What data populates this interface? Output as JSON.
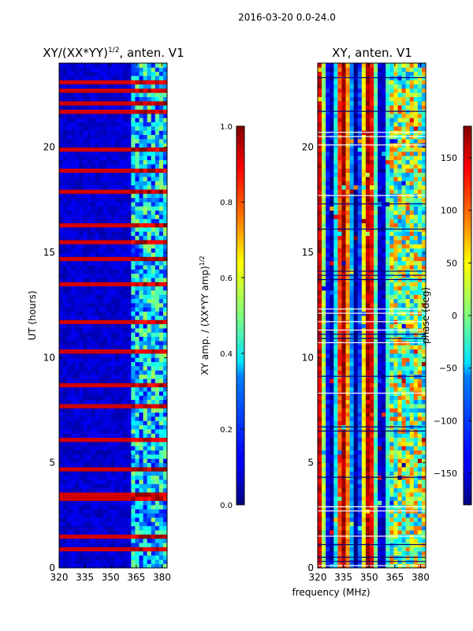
{
  "figure": {
    "suptitle": "2016-03-20 0.0-24.0",
    "xlabel": "frequency (MHz)"
  },
  "chart_data": [
    {
      "type": "heatmap",
      "title": "XY/(XX*YY)",
      "title_superscript": "1/2",
      "title_suffix": ", anten. V1",
      "xlabel": "",
      "ylabel": "UT (hours)",
      "xlim": [
        320,
        383
      ],
      "ylim": [
        0,
        24
      ],
      "xticks": [
        320,
        335,
        350,
        365,
        380
      ],
      "yticks": [
        0,
        5,
        10,
        15,
        20
      ],
      "colorbar": {
        "label": "XY amp. / (XX*YY amp)",
        "label_superscript": "1/2",
        "range": [
          0.0,
          1.0
        ],
        "ticks": [
          "0.0",
          "0.2",
          "0.4",
          "0.6",
          "0.8",
          "1.0"
        ],
        "colormap": "jet"
      },
      "hot_bands_ut": [
        0.9,
        1.5,
        3.2,
        3.5,
        4.8,
        6.0,
        7.6,
        8.7,
        10.2,
        11.6,
        13.5,
        14.6,
        15.5,
        16.3,
        17.8,
        18.9,
        19.8,
        21.6,
        22.2,
        22.7,
        23.1
      ],
      "hot_freq_mhz": [
        365,
        369,
        374,
        379
      ]
    },
    {
      "type": "heatmap",
      "title": "XY, anten. V1",
      "xlabel": "",
      "ylabel": "",
      "xlim": [
        320,
        383
      ],
      "ylim": [
        0,
        24
      ],
      "xticks": [
        320,
        335,
        350,
        365,
        380
      ],
      "yticks": [
        0,
        5,
        10,
        15,
        20
      ],
      "colorbar": {
        "label": "phase (deg)",
        "range": [
          -180,
          180
        ],
        "ticks": [
          "150",
          "100",
          "50",
          "0",
          "−50",
          "−100",
          "−150"
        ],
        "tick_values": [
          150,
          100,
          50,
          0,
          -50,
          -100,
          -150
        ],
        "colormap": "jet"
      },
      "red_stripes_mhz": [
        343,
        350,
        357
      ],
      "dark_stripes_mhz": [
        325,
        332,
        339
      ]
    }
  ],
  "colors": {
    "jet_low": "#00007f",
    "jet_mid": "#7fff7f",
    "jet_high": "#7f0000"
  }
}
